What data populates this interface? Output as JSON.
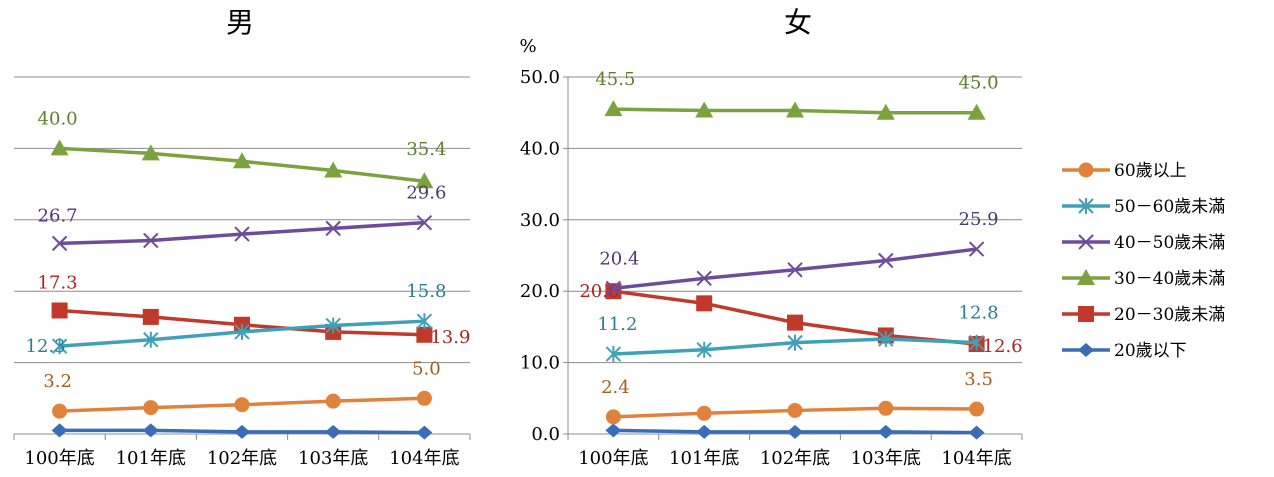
{
  "chart_data": [
    {
      "type": "line",
      "title": "男",
      "ylabel": "",
      "ylim": [
        0,
        50
      ],
      "yticks_shown": false,
      "categories": [
        "100年底",
        "101年底",
        "102年底",
        "103年底",
        "104年底"
      ],
      "series": [
        {
          "name": "60歲以上",
          "color": "#E0823C",
          "marker": "circle",
          "values": [
            3.2,
            3.7,
            4.1,
            4.6,
            5.0
          ],
          "labels": [
            "3.2",
            "",
            "",
            "",
            "5.0"
          ]
        },
        {
          "name": "50－60歲未滿",
          "color": "#3FA0B8",
          "marker": "asterisk",
          "values": [
            12.3,
            13.2,
            14.3,
            15.2,
            15.8
          ],
          "labels": [
            "12.3",
            "",
            "",
            "",
            "15.8"
          ]
        },
        {
          "name": "40－50歲未滿",
          "color": "#6F4C9B",
          "marker": "x",
          "values": [
            26.7,
            27.1,
            28.0,
            28.8,
            29.6
          ],
          "labels": [
            "26.7",
            "",
            "",
            "",
            "29.6"
          ]
        },
        {
          "name": "30－40歲未滿",
          "color": "#7BA23F",
          "marker": "triangle",
          "values": [
            40.0,
            39.3,
            38.2,
            36.9,
            35.4
          ],
          "labels": [
            "40.0",
            "",
            "",
            "",
            "35.4"
          ]
        },
        {
          "name": "20－30歲未滿",
          "color": "#C0392B",
          "marker": "square",
          "values": [
            17.3,
            16.4,
            15.3,
            14.3,
            13.9
          ],
          "labels": [
            "17.3",
            "",
            "",
            "",
            "13.9"
          ]
        },
        {
          "name": "20歲以下",
          "color": "#3A6DB5",
          "marker": "diamond",
          "values": [
            0.5,
            0.5,
            0.3,
            0.3,
            0.2
          ],
          "labels": [
            "",
            "",
            "",
            "",
            ""
          ]
        }
      ]
    },
    {
      "type": "line",
      "title": "女",
      "ylabel": "%",
      "ylim": [
        0,
        50
      ],
      "yticks": [
        "0.0",
        "10.0",
        "20.0",
        "30.0",
        "40.0",
        "50.0"
      ],
      "categories": [
        "100年底",
        "101年底",
        "102年底",
        "103年底",
        "104年底"
      ],
      "series": [
        {
          "name": "60歲以上",
          "color": "#E0823C",
          "marker": "circle",
          "values": [
            2.4,
            2.9,
            3.3,
            3.6,
            3.5
          ],
          "labels": [
            "2.4",
            "",
            "",
            "",
            "3.5"
          ]
        },
        {
          "name": "50－60歲未滿",
          "color": "#3FA0B8",
          "marker": "asterisk",
          "values": [
            11.2,
            11.8,
            12.8,
            13.3,
            12.8
          ],
          "labels": [
            "11.2",
            "",
            "",
            "",
            "12.8"
          ]
        },
        {
          "name": "40－50歲未滿",
          "color": "#6F4C9B",
          "marker": "x",
          "values": [
            20.4,
            21.8,
            23.0,
            24.3,
            25.9
          ],
          "labels": [
            "20.4",
            "",
            "",
            "",
            "25.9"
          ]
        },
        {
          "name": "30－40歲未滿",
          "color": "#7BA23F",
          "marker": "triangle",
          "values": [
            45.5,
            45.3,
            45.3,
            45.0,
            45.0
          ],
          "labels": [
            "45.5",
            "",
            "",
            "",
            "45.0"
          ]
        },
        {
          "name": "20－30歲未滿",
          "color": "#C0392B",
          "marker": "square",
          "values": [
            20.0,
            18.3,
            15.6,
            13.8,
            12.6
          ],
          "labels": [
            "20.0",
            "",
            "",
            "",
            "12.6"
          ]
        },
        {
          "name": "20歲以下",
          "color": "#3A6DB5",
          "marker": "diamond",
          "values": [
            0.5,
            0.3,
            0.3,
            0.3,
            0.2
          ],
          "labels": [
            "",
            "",
            "",
            "",
            ""
          ]
        }
      ]
    }
  ],
  "legend": {
    "placement": "right",
    "items": [
      {
        "name": "60歲以上",
        "color": "#E0823C",
        "marker": "circle"
      },
      {
        "name": "50－60歲未滿",
        "color": "#3FA0B8",
        "marker": "asterisk"
      },
      {
        "name": "40－50歲未滿",
        "color": "#6F4C9B",
        "marker": "x"
      },
      {
        "name": "30－40歲未滿",
        "color": "#7BA23F",
        "marker": "triangle"
      },
      {
        "name": "20－30歲未滿",
        "color": "#C0392B",
        "marker": "square"
      },
      {
        "name": "20歲以下",
        "color": "#3A6DB5",
        "marker": "diamond"
      }
    ]
  },
  "label_colors": {
    "60歲以上": "#A0611F",
    "50－60歲未滿": "#2E7E93",
    "40－50歲未滿": "#4E3A78",
    "30－40歲未滿": "#5E7F2E",
    "20－30歲未滿": "#B22222"
  }
}
